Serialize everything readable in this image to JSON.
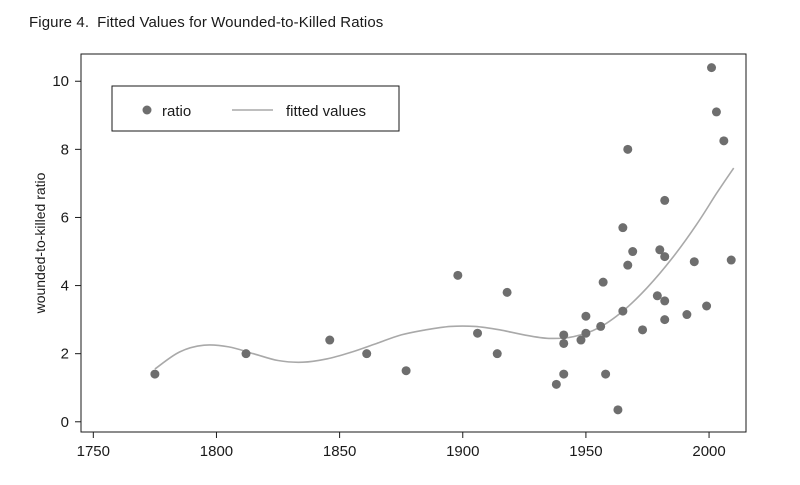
{
  "figure": {
    "label": "Figure 4.",
    "title": "Fitted Values for Wounded-to-Killed Ratios"
  },
  "chart_data": {
    "type": "scatter",
    "title": "Fitted Values for Wounded-to-Killed Ratios",
    "xlabel": "",
    "ylabel": "wounded-to-killed ratio",
    "xlim": [
      1745,
      2015
    ],
    "ylim": [
      -0.3,
      10.8
    ],
    "x_ticks": [
      1750,
      1800,
      1850,
      1900,
      1950,
      2000
    ],
    "y_ticks": [
      0,
      2,
      4,
      6,
      8,
      10
    ],
    "grid": false,
    "legend": {
      "placement": "top-left",
      "entries": [
        "ratio",
        "fitted values"
      ]
    },
    "colors": {
      "points": "#6e6e6e",
      "fitted_line": "#a9a9a9",
      "axis": "#1a1a1a"
    },
    "series": [
      {
        "name": "ratio",
        "kind": "scatter",
        "points": [
          [
            1775,
            1.4
          ],
          [
            1812,
            2.0
          ],
          [
            1846,
            2.4
          ],
          [
            1861,
            2.0
          ],
          [
            1877,
            1.5
          ],
          [
            1898,
            4.3
          ],
          [
            1906,
            2.6
          ],
          [
            1914,
            2.0
          ],
          [
            1918,
            3.8
          ],
          [
            1938,
            1.1
          ],
          [
            1941,
            1.4
          ],
          [
            1941,
            2.3
          ],
          [
            1941,
            2.55
          ],
          [
            1948,
            2.4
          ],
          [
            1950,
            2.6
          ],
          [
            1950,
            3.1
          ],
          [
            1956,
            2.8
          ],
          [
            1957,
            4.1
          ],
          [
            1958,
            1.4
          ],
          [
            1963,
            0.35
          ],
          [
            1965,
            5.7
          ],
          [
            1965,
            3.25
          ],
          [
            1967,
            4.6
          ],
          [
            1967,
            8.0
          ],
          [
            1969,
            5.0
          ],
          [
            1973,
            2.7
          ],
          [
            1979,
            3.7
          ],
          [
            1980,
            5.05
          ],
          [
            1982,
            6.5
          ],
          [
            1982,
            4.85
          ],
          [
            1982,
            3.55
          ],
          [
            1982,
            3.0
          ],
          [
            1991,
            3.15
          ],
          [
            1994,
            4.7
          ],
          [
            1999,
            3.4
          ],
          [
            2001,
            10.4
          ],
          [
            2003,
            9.1
          ],
          [
            2006,
            8.25
          ],
          [
            2009,
            4.75
          ]
        ]
      },
      {
        "name": "fitted values",
        "kind": "line",
        "points": [
          [
            1775,
            1.55
          ],
          [
            1785,
            2.05
          ],
          [
            1795,
            2.25
          ],
          [
            1805,
            2.2
          ],
          [
            1815,
            2.0
          ],
          [
            1825,
            1.8
          ],
          [
            1835,
            1.75
          ],
          [
            1845,
            1.85
          ],
          [
            1855,
            2.05
          ],
          [
            1865,
            2.3
          ],
          [
            1875,
            2.55
          ],
          [
            1885,
            2.7
          ],
          [
            1895,
            2.8
          ],
          [
            1905,
            2.8
          ],
          [
            1915,
            2.7
          ],
          [
            1925,
            2.55
          ],
          [
            1935,
            2.45
          ],
          [
            1945,
            2.5
          ],
          [
            1955,
            2.75
          ],
          [
            1965,
            3.25
          ],
          [
            1975,
            3.95
          ],
          [
            1985,
            4.8
          ],
          [
            1995,
            5.8
          ],
          [
            2003,
            6.7
          ],
          [
            2010,
            7.45
          ]
        ]
      }
    ]
  }
}
